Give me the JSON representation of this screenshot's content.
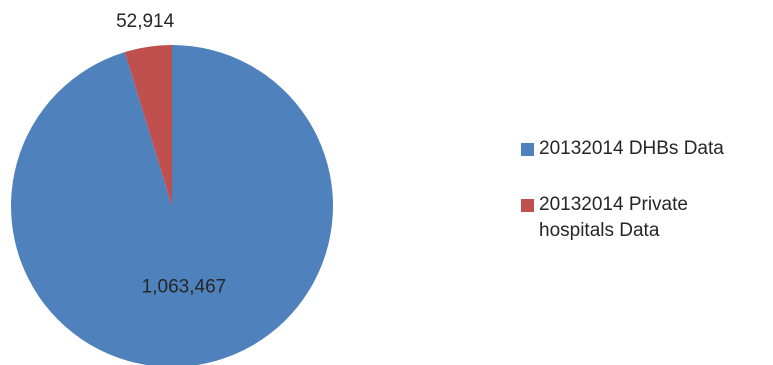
{
  "chart_data": {
    "type": "pie",
    "title": "",
    "categories": [
      "20132014 DHBs Data",
      "20132014 Private hospitals Data"
    ],
    "values": [
      1063467,
      52914
    ],
    "data_labels": [
      "1,063,467",
      "52,914"
    ],
    "colors": [
      "#4f81bd",
      "#c0504d"
    ],
    "legend_position": "right"
  }
}
